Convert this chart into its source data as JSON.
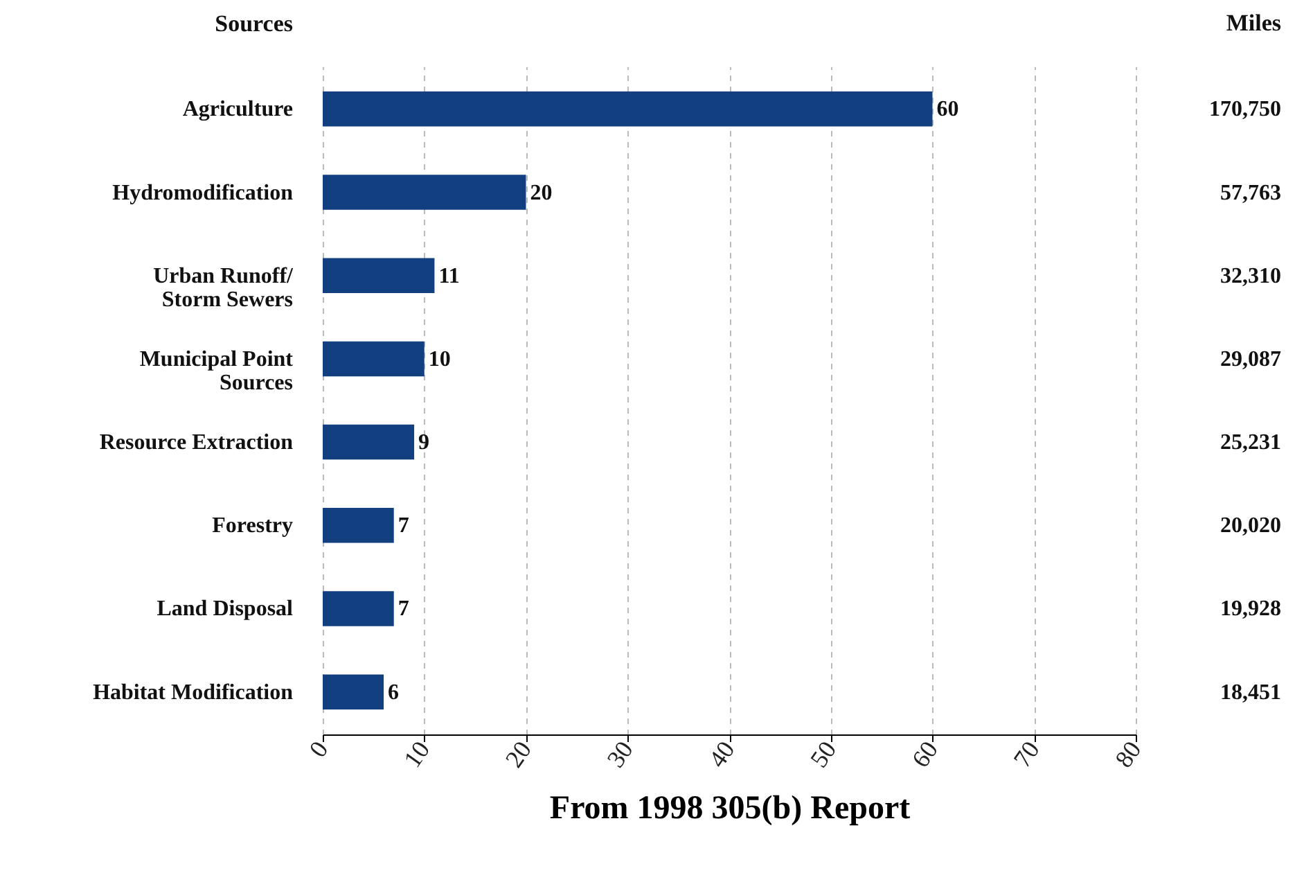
{
  "chart_data": {
    "type": "bar",
    "orientation": "horizontal",
    "ylabel": "Sources",
    "y2label": "Miles",
    "xlabel": "From 1998 305(b) Report",
    "categories": [
      "Agriculture",
      "Hydromodification",
      "Urban Runoff/\nStorm Sewers",
      "Municipal Point\nSources",
      "Resource Extraction",
      "Forestry",
      "Land Disposal",
      "Habitat Modification"
    ],
    "values": [
      60,
      20,
      11,
      10,
      9,
      7,
      7,
      6
    ],
    "color": "#123f7f",
    "data_labels": true,
    "xlim": [
      0,
      80
    ],
    "xticks": [
      0,
      10,
      20,
      30,
      40,
      50,
      60,
      70,
      80
    ],
    "grid": "x",
    "annotations": [
      "170,750",
      "57,763",
      "32,310",
      "29,087",
      "25,231",
      "20,020",
      "19,928",
      "18,451"
    ]
  }
}
